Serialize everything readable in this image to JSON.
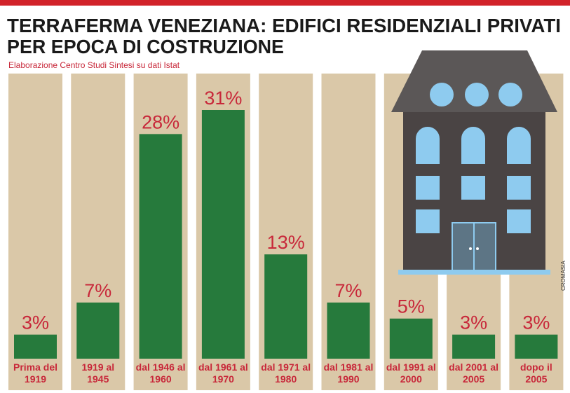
{
  "chart_data": {
    "type": "bar",
    "title": [
      "TERRAFERMA VENEZIANA: EDIFICI RESIDENZIALI PRIVATI",
      "PER EPOCA DI COSTRUZIONE"
    ],
    "subtitle": "Elaborazione Centro Studi Sintesi su dati Istat",
    "credit": "CROMASIA",
    "categories": [
      "Prima del 1919",
      "1919 al 1945",
      "dal 1946 al 1960",
      "dal 1961 al 1970",
      "dal 1971 al 1980",
      "dal 1981 al 1990",
      "dal 1991 al 2000",
      "dal 2001 al 2005",
      "dopo il 2005"
    ],
    "values": [
      3,
      7,
      28,
      31,
      13,
      7,
      5,
      3,
      3
    ],
    "value_labels": [
      "3%",
      "7%",
      "28%",
      "31%",
      "13%",
      "7%",
      "5%",
      "3%",
      "3%"
    ],
    "color": "#267a3c"
  }
}
